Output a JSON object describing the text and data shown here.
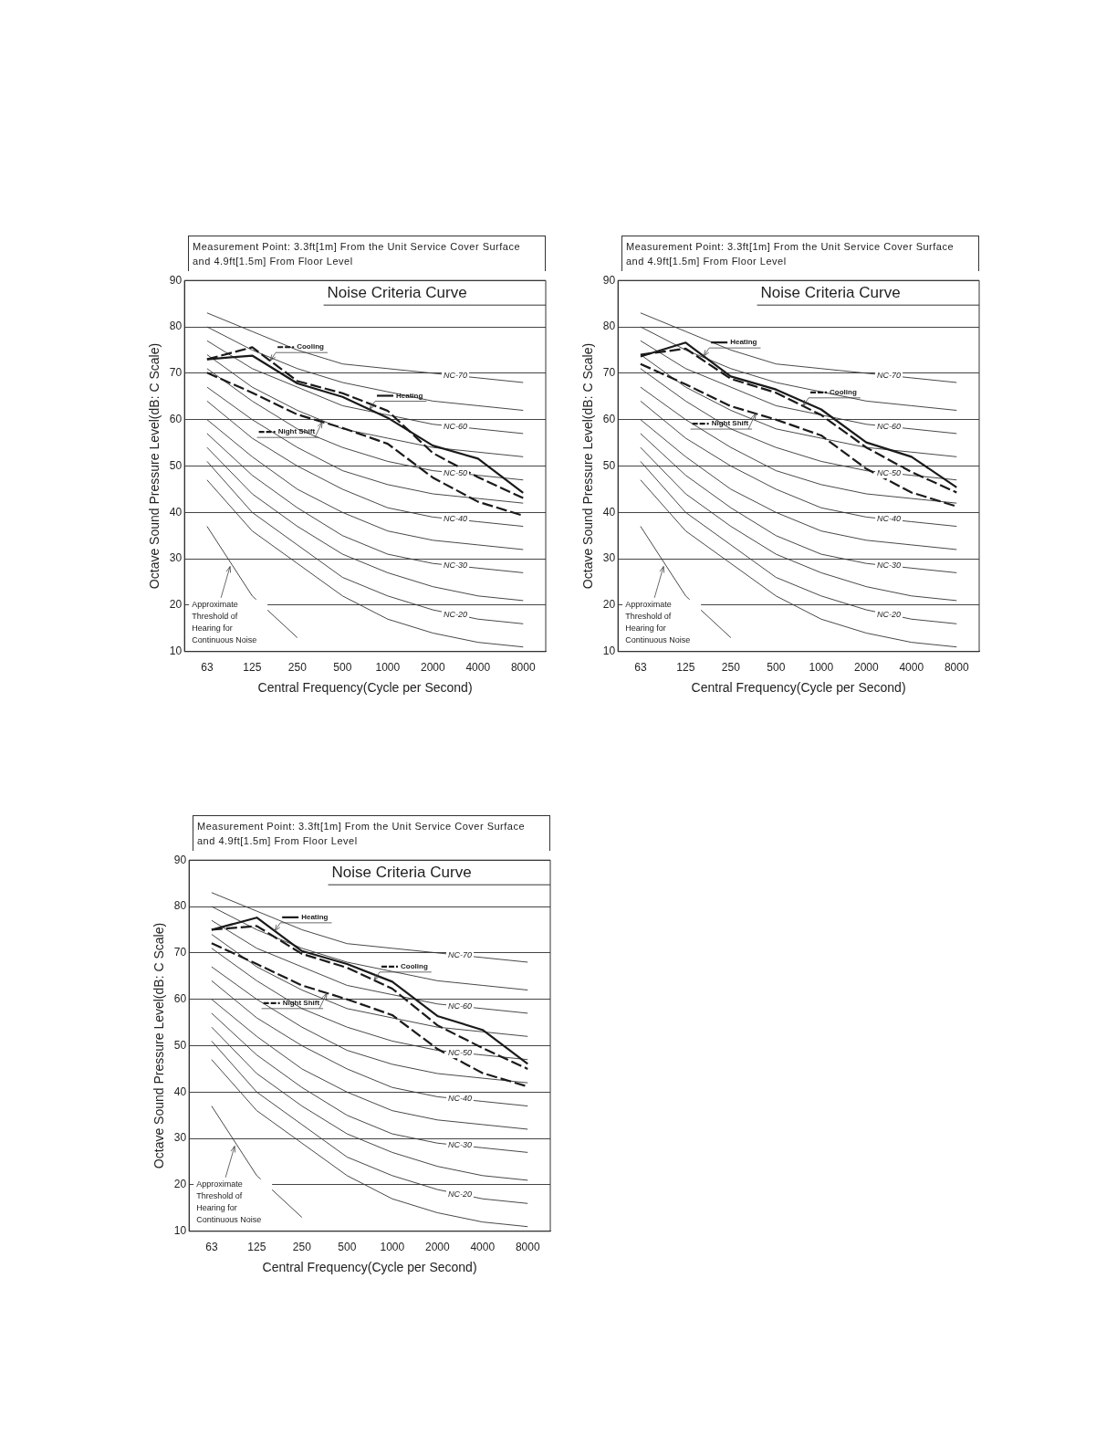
{
  "chart_data": [
    {
      "type": "line",
      "subtitle": "Measurement Point: 3.3ft[1m] From the Unit Service Cover Surface and 4.9ft[1.5m] From Floor Level",
      "xlabel": "Central Frequency(Cycle per Second)",
      "ylabel": "Octave Sound Pressure Level(dB: C Scale)",
      "annotations": [
        "Noise Criteria Curve"
      ],
      "categories": [
        "63",
        "125",
        "250",
        "500",
        "1000",
        "2000",
        "4000",
        "8000"
      ],
      "ylim": [
        10,
        90
      ],
      "yticks": [
        10,
        20,
        30,
        40,
        50,
        60,
        70,
        80,
        90
      ],
      "grid": "y",
      "legend": "top left",
      "marker": "none",
      "series": [
        {
          "name": "Cooling",
          "color": "#1a1a1a",
          "line_style": "dashed",
          "values": [
            73,
            75.6,
            68.3,
            65.7,
            61.9,
            52.8,
            47.6,
            43.1
          ]
        },
        {
          "name": "Heating",
          "color": "#1a1a1a",
          "line_style": "solid",
          "values": [
            73,
            73.8,
            67.8,
            64.9,
            60.4,
            54.4,
            51.6,
            44.2
          ]
        },
        {
          "name": "Night Shift",
          "color": "#1a1a1a",
          "line_style": "dashed",
          "values": [
            70.1,
            65.8,
            61.1,
            58.2,
            54.8,
            47.5,
            42.3,
            39.3
          ]
        },
        {
          "name": "Approximate Threshold of Hearing for Continuous Noise",
          "color": "#333333",
          "line_style": "solid",
          "values": [
            37,
            22,
            13,
            null,
            null,
            null,
            null,
            null
          ]
        },
        {
          "color": "#333333",
          "values": [
            47,
            36,
            29,
            22,
            17,
            14,
            12,
            11
          ]
        },
        {
          "name": "NC-20",
          "color": "#333333",
          "values": [
            51,
            40,
            33,
            26,
            22,
            19,
            17,
            16
          ]
        },
        {
          "color": "#333333",
          "values": [
            54,
            44,
            37,
            31,
            27,
            24,
            22,
            21
          ]
        },
        {
          "name": "NC-30",
          "color": "#333333",
          "values": [
            57,
            48,
            41,
            35,
            31,
            29,
            28,
            27
          ]
        },
        {
          "color": "#333333",
          "values": [
            60,
            52,
            45,
            40,
            36,
            34,
            33,
            32
          ]
        },
        {
          "name": "NC-40",
          "color": "#333333",
          "values": [
            64,
            56,
            50,
            45,
            41,
            39,
            38,
            37
          ]
        },
        {
          "color": "#333333",
          "values": [
            67,
            60,
            54,
            49,
            46,
            44,
            43,
            42
          ]
        },
        {
          "name": "NC-50",
          "color": "#333333",
          "values": [
            71,
            64,
            58,
            54,
            51,
            49,
            48,
            47
          ]
        },
        {
          "color": "#333333",
          "values": [
            74,
            67,
            62,
            58,
            56,
            54,
            53,
            52
          ]
        },
        {
          "name": "NC-60",
          "color": "#333333",
          "values": [
            77,
            71,
            67,
            63,
            61,
            59,
            58,
            57
          ]
        },
        {
          "color": "#333333",
          "values": [
            80,
            75,
            71,
            68,
            66,
            64,
            63,
            62
          ]
        },
        {
          "name": "NC-70",
          "color": "#333333",
          "values": [
            83,
            79,
            75,
            72,
            71,
            70,
            69,
            68
          ]
        }
      ]
    },
    {
      "type": "line",
      "subtitle": "Measurement Point: 3.3ft[1m] From the Unit Service Cover Surface and 4.9ft[1.5m] From Floor Level",
      "xlabel": "Central Frequency(Cycle per Second)",
      "ylabel": "Octave Sound Pressure Level(dB: C Scale)",
      "annotations": [
        "Noise Criteria Curve"
      ],
      "categories": [
        "63",
        "125",
        "250",
        "500",
        "1000",
        "2000",
        "4000",
        "8000"
      ],
      "ylim": [
        10,
        90
      ],
      "yticks": [
        10,
        20,
        30,
        40,
        50,
        60,
        70,
        80,
        90
      ],
      "grid": "y",
      "legend": "top left",
      "marker": "none",
      "series": [
        {
          "name": "Heating",
          "color": "#1a1a1a",
          "line_style": "solid",
          "values": [
            73.6,
            76.6,
            69.3,
            66.5,
            62.2,
            55.1,
            52,
            45.4
          ]
        },
        {
          "name": "Cooling",
          "color": "#1a1a1a",
          "line_style": "dashed",
          "values": [
            74,
            75.3,
            68.8,
            65.8,
            61,
            54,
            48.7,
            44.3
          ]
        },
        {
          "name": "Night Shift",
          "color": "#1a1a1a",
          "line_style": "dashed",
          "values": [
            72,
            67.6,
            62.9,
            60,
            56.6,
            49.4,
            44.3,
            41.3
          ]
        },
        {
          "name": "Approximate Threshold of Hearing for Continuous Noise",
          "color": "#333333",
          "line_style": "solid",
          "values": [
            37,
            22,
            13,
            null,
            null,
            null,
            null,
            null
          ]
        },
        {
          "color": "#333333",
          "values": [
            47,
            36,
            29,
            22,
            17,
            14,
            12,
            11
          ]
        },
        {
          "name": "NC-20",
          "color": "#333333",
          "values": [
            51,
            40,
            33,
            26,
            22,
            19,
            17,
            16
          ]
        },
        {
          "color": "#333333",
          "values": [
            54,
            44,
            37,
            31,
            27,
            24,
            22,
            21
          ]
        },
        {
          "name": "NC-30",
          "color": "#333333",
          "values": [
            57,
            48,
            41,
            35,
            31,
            29,
            28,
            27
          ]
        },
        {
          "color": "#333333",
          "values": [
            60,
            52,
            45,
            40,
            36,
            34,
            33,
            32
          ]
        },
        {
          "name": "NC-40",
          "color": "#333333",
          "values": [
            64,
            56,
            50,
            45,
            41,
            39,
            38,
            37
          ]
        },
        {
          "color": "#333333",
          "values": [
            67,
            60,
            54,
            49,
            46,
            44,
            43,
            42
          ]
        },
        {
          "name": "NC-50",
          "color": "#333333",
          "values": [
            71,
            64,
            58,
            54,
            51,
            49,
            48,
            47
          ]
        },
        {
          "color": "#333333",
          "values": [
            74,
            67,
            62,
            58,
            56,
            54,
            53,
            52
          ]
        },
        {
          "name": "NC-60",
          "color": "#333333",
          "values": [
            77,
            71,
            67,
            63,
            61,
            59,
            58,
            57
          ]
        },
        {
          "color": "#333333",
          "values": [
            80,
            75,
            71,
            68,
            66,
            64,
            63,
            62
          ]
        },
        {
          "name": "NC-70",
          "color": "#333333",
          "values": [
            83,
            79,
            75,
            72,
            71,
            70,
            69,
            68
          ]
        }
      ]
    },
    {
      "type": "line",
      "subtitle": "Measurement Point: 3.3ft[1m] From the Unit Service Cover Surface and 4.9ft[1.5m] From Floor Level",
      "xlabel": "Central Frequency(Cycle per Second)",
      "ylabel": "Octave Sound Pressure Level(dB: C Scale)",
      "annotations": [
        "Noise Criteria Curve"
      ],
      "categories": [
        "63",
        "125",
        "250",
        "500",
        "1000",
        "2000",
        "4000",
        "8000"
      ],
      "ylim": [
        10,
        90
      ],
      "yticks": [
        10,
        20,
        30,
        40,
        50,
        60,
        70,
        80,
        90
      ],
      "grid": "y",
      "legend": "top left",
      "marker": "none",
      "series": [
        {
          "name": "Heating",
          "color": "#1a1a1a",
          "line_style": "solid",
          "values": [
            75,
            77.6,
            70.4,
            67.6,
            63.8,
            56.4,
            53.4,
            46.1
          ]
        },
        {
          "name": "Cooling",
          "color": "#1a1a1a",
          "line_style": "dashed",
          "values": [
            75,
            75.8,
            69.8,
            66.8,
            62.3,
            54.4,
            49.5,
            45
          ]
        },
        {
          "name": "Night Shift",
          "color": "#1a1a1a",
          "line_style": "dashed",
          "values": [
            72.1,
            67.6,
            63,
            60,
            56.6,
            49.3,
            44.1,
            41.2
          ]
        },
        {
          "name": "Approximate Threshold of Hearing for Continuous Noise",
          "color": "#333333",
          "line_style": "solid",
          "values": [
            37,
            22,
            13,
            null,
            null,
            null,
            null,
            null
          ]
        },
        {
          "color": "#333333",
          "values": [
            47,
            36,
            29,
            22,
            17,
            14,
            12,
            11
          ]
        },
        {
          "name": "NC-20",
          "color": "#333333",
          "values": [
            51,
            40,
            33,
            26,
            22,
            19,
            17,
            16
          ]
        },
        {
          "color": "#333333",
          "values": [
            54,
            44,
            37,
            31,
            27,
            24,
            22,
            21
          ]
        },
        {
          "name": "NC-30",
          "color": "#333333",
          "values": [
            57,
            48,
            41,
            35,
            31,
            29,
            28,
            27
          ]
        },
        {
          "color": "#333333",
          "values": [
            60,
            52,
            45,
            40,
            36,
            34,
            33,
            32
          ]
        },
        {
          "name": "NC-40",
          "color": "#333333",
          "values": [
            64,
            56,
            50,
            45,
            41,
            39,
            38,
            37
          ]
        },
        {
          "color": "#333333",
          "values": [
            67,
            60,
            54,
            49,
            46,
            44,
            43,
            42
          ]
        },
        {
          "name": "NC-50",
          "color": "#333333",
          "values": [
            71,
            64,
            58,
            54,
            51,
            49,
            48,
            47
          ]
        },
        {
          "color": "#333333",
          "values": [
            74,
            67,
            62,
            58,
            56,
            54,
            53,
            52
          ]
        },
        {
          "name": "NC-60",
          "color": "#333333",
          "values": [
            77,
            71,
            67,
            63,
            61,
            59,
            58,
            57
          ]
        },
        {
          "color": "#333333",
          "values": [
            80,
            75,
            71,
            68,
            66,
            64,
            63,
            62
          ]
        },
        {
          "name": "NC-70",
          "color": "#333333",
          "values": [
            83,
            79,
            75,
            72,
            71,
            70,
            69,
            68
          ]
        }
      ]
    }
  ]
}
